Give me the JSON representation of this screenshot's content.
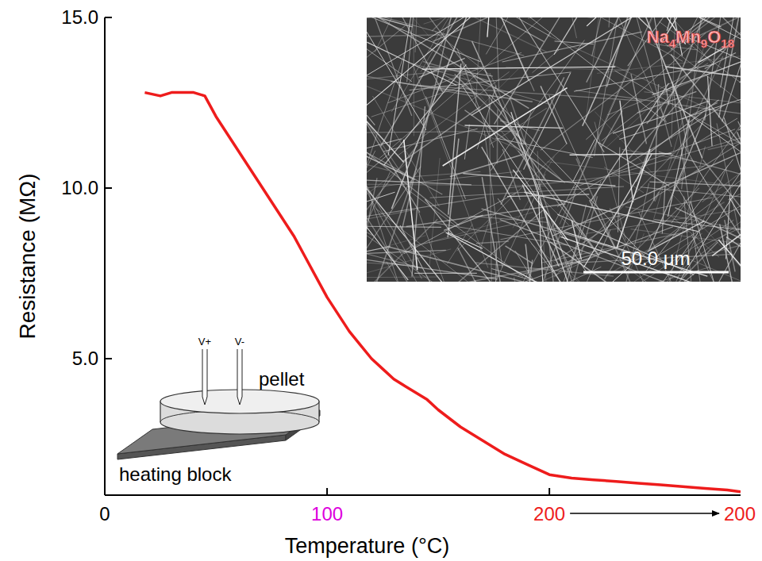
{
  "chart_data": {
    "type": "line",
    "x_label": "Temperature (°C)",
    "y_label": "Resistance (MΩ)",
    "x": [
      18,
      25,
      30,
      35,
      40,
      45,
      50,
      55,
      60,
      65,
      70,
      75,
      80,
      85,
      90,
      95,
      100,
      105,
      110,
      115,
      120,
      125,
      130,
      135,
      140,
      145,
      150,
      160,
      170,
      180,
      190,
      200,
      210,
      220,
      230,
      240,
      250,
      260,
      270,
      280,
      286
    ],
    "values": [
      12.8,
      12.7,
      12.8,
      12.8,
      12.8,
      12.7,
      12.1,
      11.6,
      11.1,
      10.6,
      10.1,
      9.6,
      9.1,
      8.6,
      8.0,
      7.4,
      6.8,
      6.3,
      5.8,
      5.4,
      5.0,
      4.7,
      4.4,
      4.2,
      4.0,
      3.8,
      3.5,
      3.0,
      2.6,
      2.2,
      1.9,
      1.6,
      1.5,
      1.45,
      1.4,
      1.35,
      1.3,
      1.25,
      1.2,
      1.15,
      1.1
    ],
    "color": "#ee1c1c",
    "line_style": "solid",
    "xlim": [
      0,
      286
    ],
    "xticks": [
      0,
      100,
      200
    ],
    "ylim": [
      1,
      15
    ],
    "yticks": [
      {
        "value": 5,
        "label": "5.0"
      },
      {
        "value": 10,
        "label": "10.0"
      },
      {
        "value": 15,
        "label": "15.0"
      }
    ],
    "grid": false,
    "annotations": {
      "hold_end_label": "200",
      "inset_title": "Na4Mn9O18",
      "scale_bar": "50.0 μm",
      "probe_plus": "V+",
      "probe_minus": "V-",
      "pellet": "pellet",
      "heating_block": "heating block"
    }
  }
}
